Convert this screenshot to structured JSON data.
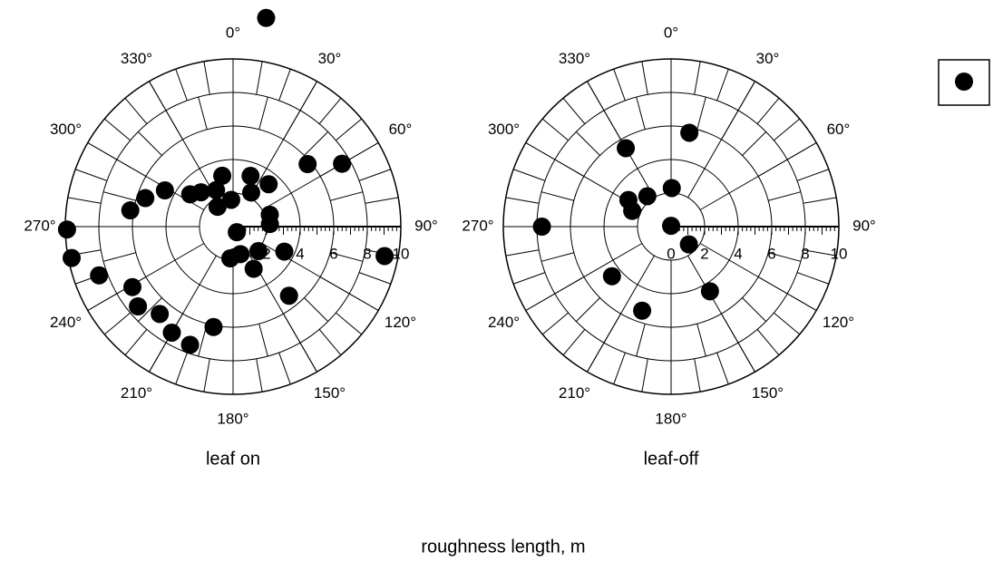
{
  "caption": "roughness length, m",
  "chart_data": [
    {
      "type": "polar",
      "title": "leaf on",
      "theta": [
        9,
        50,
        60,
        348,
        19,
        40,
        28,
        356,
        335,
        322,
        317,
        307,
        298,
        288,
        279,
        72,
        86,
        146,
        185,
        165,
        134,
        154,
        116,
        141,
        101,
        269,
        259,
        250,
        239,
        230,
        220,
        210,
        200,
        191
      ],
      "values": [
        12.6,
        5.8,
        7.5,
        3.1,
        3.2,
        3.3,
        2.3,
        1.6,
        2.4,
        1.5,
        2.8,
        3.2,
        4.6,
        5.5,
        6.2,
        2.3,
        2.2,
        0.4,
        1.9,
        1.7,
        2.1,
        2.8,
        3.4,
        5.3,
        9.2,
        9.9,
        9.8,
        8.5,
        7.0,
        7.4,
        6.8,
        7.3,
        7.5,
        6.1
      ],
      "color": "#000000",
      "ylim": [
        0,
        10
      ],
      "yticks": [
        0,
        2,
        4,
        6,
        8,
        10
      ],
      "thetaticks": [
        {
          "value": 0,
          "label": "0°"
        },
        {
          "value": 30,
          "label": "30°"
        },
        {
          "value": 60,
          "label": "60°"
        },
        {
          "value": 90,
          "label": "90°"
        },
        {
          "value": 120,
          "label": "120°"
        },
        {
          "value": 150,
          "label": "150°"
        },
        {
          "value": 180,
          "label": "180°"
        },
        {
          "value": 210,
          "label": "210°"
        },
        {
          "value": 240,
          "label": "240°"
        },
        {
          "value": 270,
          "label": "270°"
        },
        {
          "value": 300,
          "label": "300°"
        },
        {
          "value": 330,
          "label": "330°"
        }
      ]
    },
    {
      "type": "polar",
      "title": "leaf-off",
      "theta": [
        11,
        330,
        1,
        322,
        302,
        292,
        270,
        0,
        135,
        230,
        149,
        199
      ],
      "values": [
        5.7,
        5.4,
        2.3,
        2.3,
        3.0,
        2.5,
        7.7,
        0.05,
        1.5,
        4.6,
        4.5,
        5.3
      ],
      "color": "#000000",
      "ylim": [
        0,
        10
      ],
      "yticks": [
        0,
        2,
        4,
        6,
        8,
        10
      ],
      "thetaticks": [
        {
          "value": 0,
          "label": "0°"
        },
        {
          "value": 30,
          "label": "30°"
        },
        {
          "value": 60,
          "label": "60°"
        },
        {
          "value": 90,
          "label": "90°"
        },
        {
          "value": 120,
          "label": "120°"
        },
        {
          "value": 150,
          "label": "150°"
        },
        {
          "value": 180,
          "label": "180°"
        },
        {
          "value": 210,
          "label": "210°"
        },
        {
          "value": 240,
          "label": "240°"
        },
        {
          "value": 270,
          "label": "270°"
        },
        {
          "value": 300,
          "label": "300°"
        },
        {
          "value": 330,
          "label": "330°"
        }
      ]
    }
  ]
}
